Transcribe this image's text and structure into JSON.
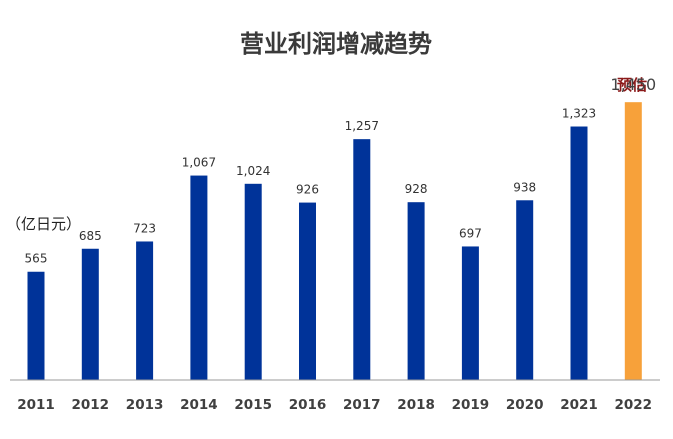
{
  "chart_data": {
    "type": "bar",
    "title": "营业利润增减趋势",
    "ylabel": "（亿日元）",
    "categories": [
      "2011",
      "2012",
      "2013",
      "2014",
      "2015",
      "2016",
      "2017",
      "2018",
      "2019",
      "2020",
      "2021",
      "2022"
    ],
    "values": [
      565,
      685,
      723,
      1067,
      1024,
      926,
      1257,
      928,
      697,
      938,
      1323,
      1450
    ],
    "value_labels": [
      "565",
      "685",
      "723",
      "1,067",
      "1,024",
      "926",
      "1,257",
      "928",
      "697",
      "938",
      "1,323",
      "1,450"
    ],
    "forecast_label": "预估",
    "forecast_index": 11,
    "colors": {
      "actual": "#003399",
      "forecast": "#F7A13A"
    },
    "ylim": [
      0,
      1600
    ],
    "grid": false
  }
}
